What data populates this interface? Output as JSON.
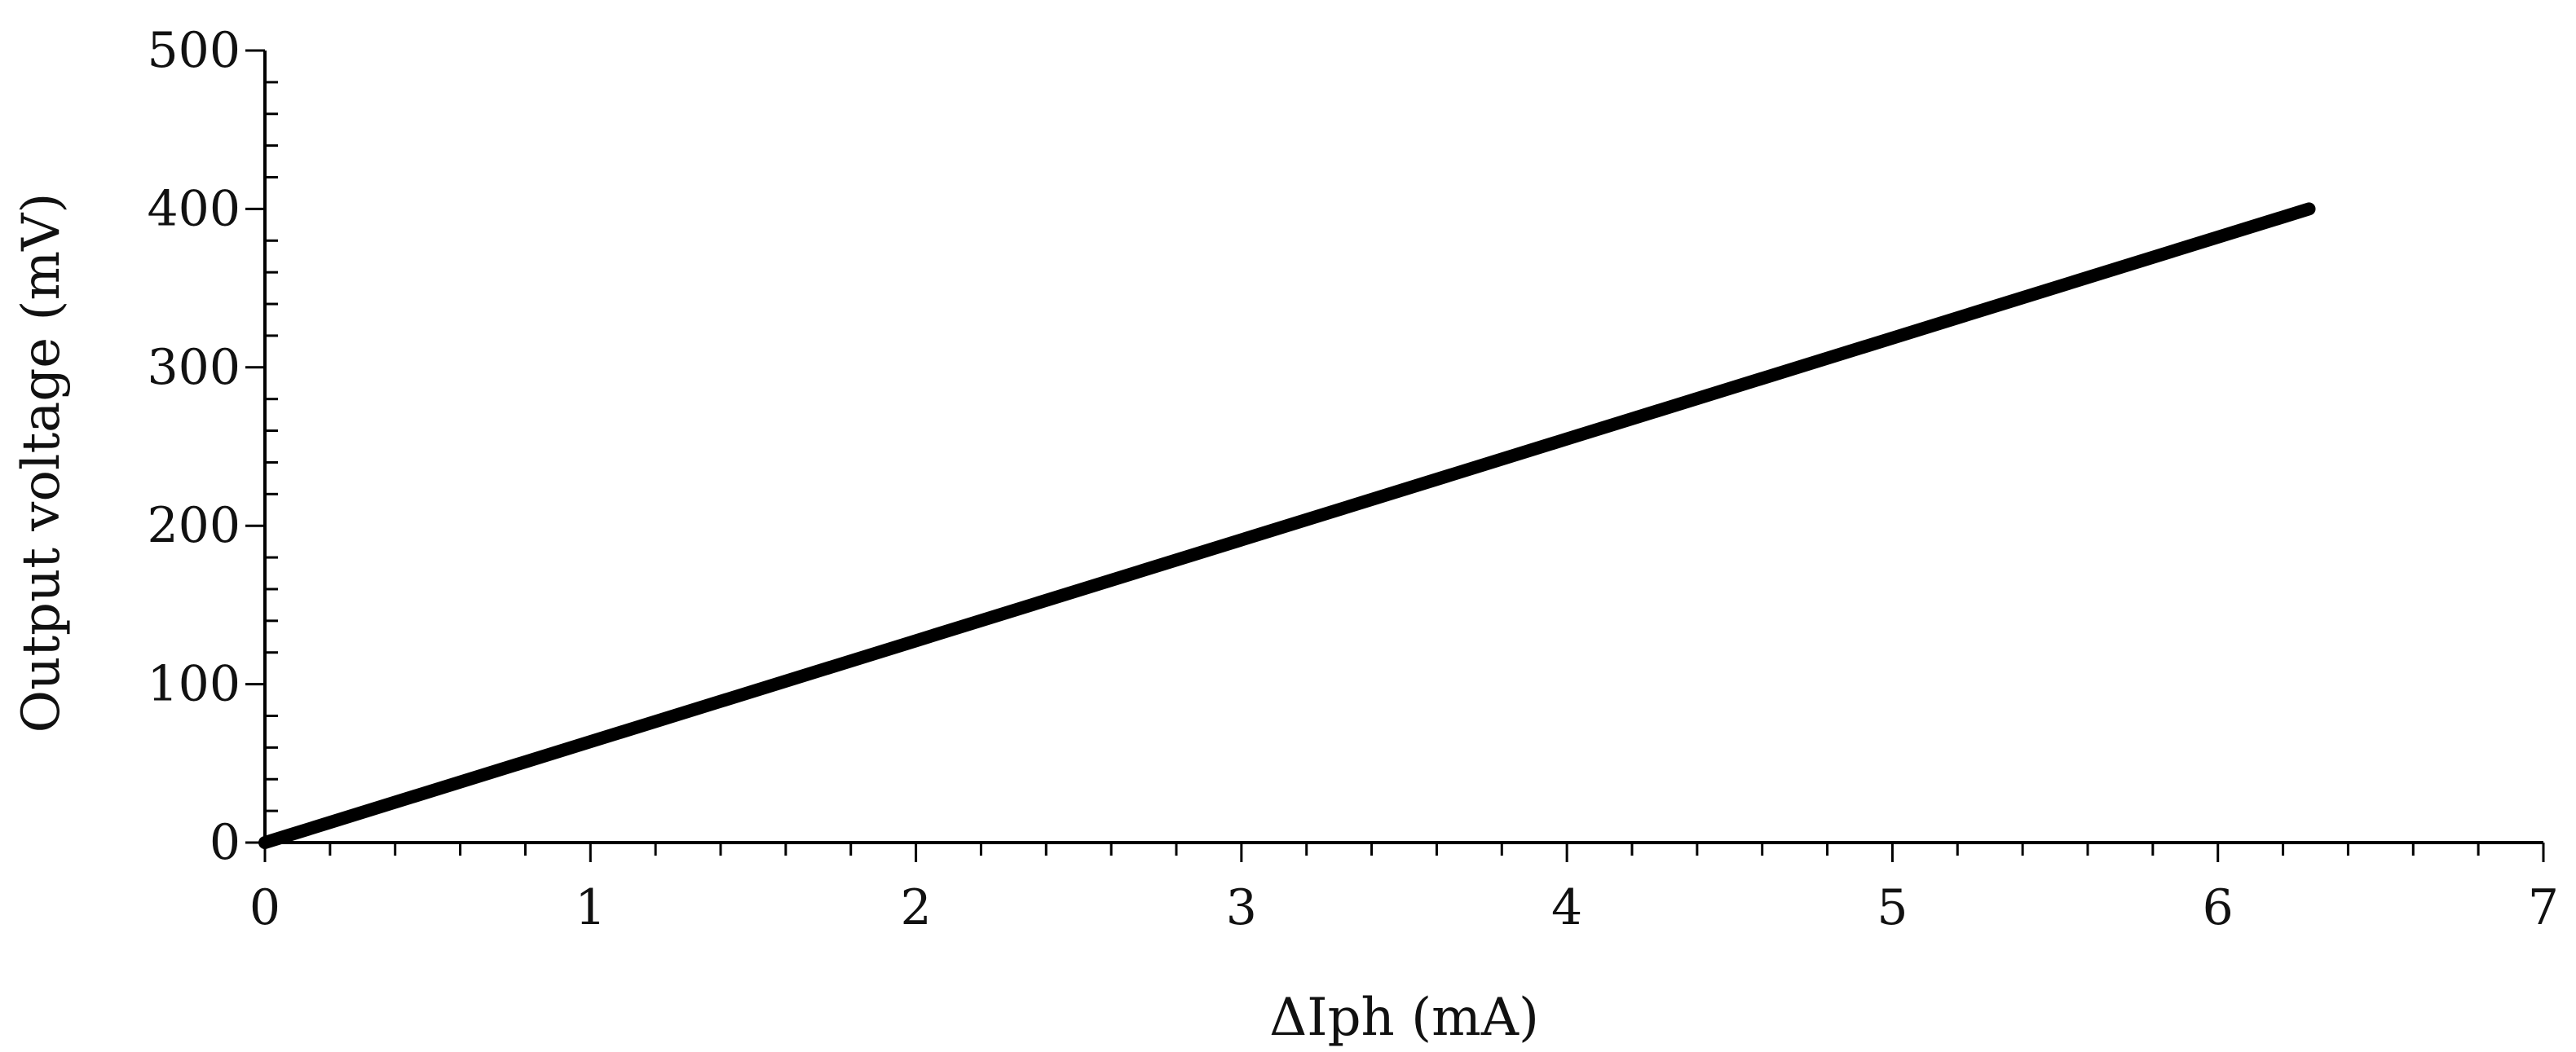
{
  "chart_data": {
    "type": "line",
    "title": "",
    "xlabel": "ΔIph (mA)",
    "ylabel": "Output voltage (mV)",
    "xlim": [
      0,
      7
    ],
    "ylim": [
      0,
      500
    ],
    "x_ticks": [
      0,
      1,
      2,
      3,
      4,
      5,
      6,
      7
    ],
    "y_ticks": [
      0,
      100,
      200,
      300,
      400,
      500
    ],
    "x_tick_labels": [
      "0",
      "1",
      "2",
      "3",
      "4",
      "5",
      "6",
      "7"
    ],
    "y_tick_labels": [
      "0",
      "100",
      "200",
      "300",
      "400",
      "500"
    ],
    "x_minor_step": 0.2,
    "y_minor_step": 20,
    "grid": false,
    "legend": "none",
    "series": [
      {
        "x": [
          0,
          1,
          2,
          3,
          4,
          5,
          6,
          6.28
        ],
        "values": [
          0,
          63.7,
          127.4,
          191.1,
          254.8,
          318.5,
          382.2,
          400
        ],
        "color": "#000000"
      }
    ]
  }
}
